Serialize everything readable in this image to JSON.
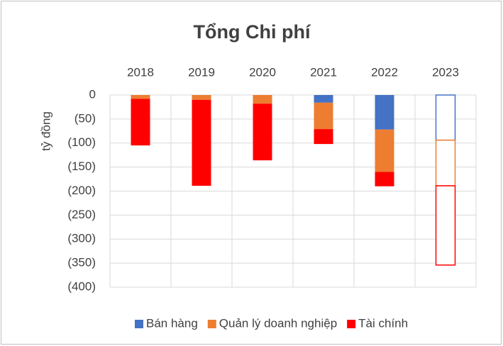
{
  "chart_data": {
    "type": "stacked_bar",
    "title": "Tổng Chi phí",
    "y_label": "tỷ đồng",
    "categories": [
      "2018",
      "2019",
      "2020",
      "2021",
      "2022",
      "2023"
    ],
    "series": [
      {
        "name": "Bán hàng",
        "color": "#4472c4",
        "values": [
          0,
          0,
          0,
          -16,
          -72,
          -94
        ]
      },
      {
        "name": "Quản lý doanh nghiệp",
        "color": "#ed7d31",
        "values": [
          -8,
          -10,
          -18,
          -55,
          -88,
          -95
        ]
      },
      {
        "name": "Tài chính",
        "color": "#ff0000",
        "values": [
          -97,
          -179,
          -118,
          -31,
          -30,
          -165
        ]
      }
    ],
    "outline_only": [
      false,
      false,
      false,
      false,
      false,
      true
    ],
    "ylim": [
      -400,
      0
    ],
    "yticks": [
      0,
      {
        "value": -50,
        "label": "(50)"
      },
      {
        "value": -100,
        "label": "(100)"
      },
      {
        "value": -150,
        "label": "(150)"
      },
      {
        "value": -200,
        "label": "(200)"
      },
      {
        "value": -250,
        "label": "(250)"
      },
      {
        "value": -300,
        "label": "(300)"
      },
      {
        "value": -350,
        "label": "(350)"
      },
      {
        "value": -400,
        "label": "(400)"
      }
    ],
    "grid": true,
    "legend": "bottom",
    "category_axis": "top"
  }
}
